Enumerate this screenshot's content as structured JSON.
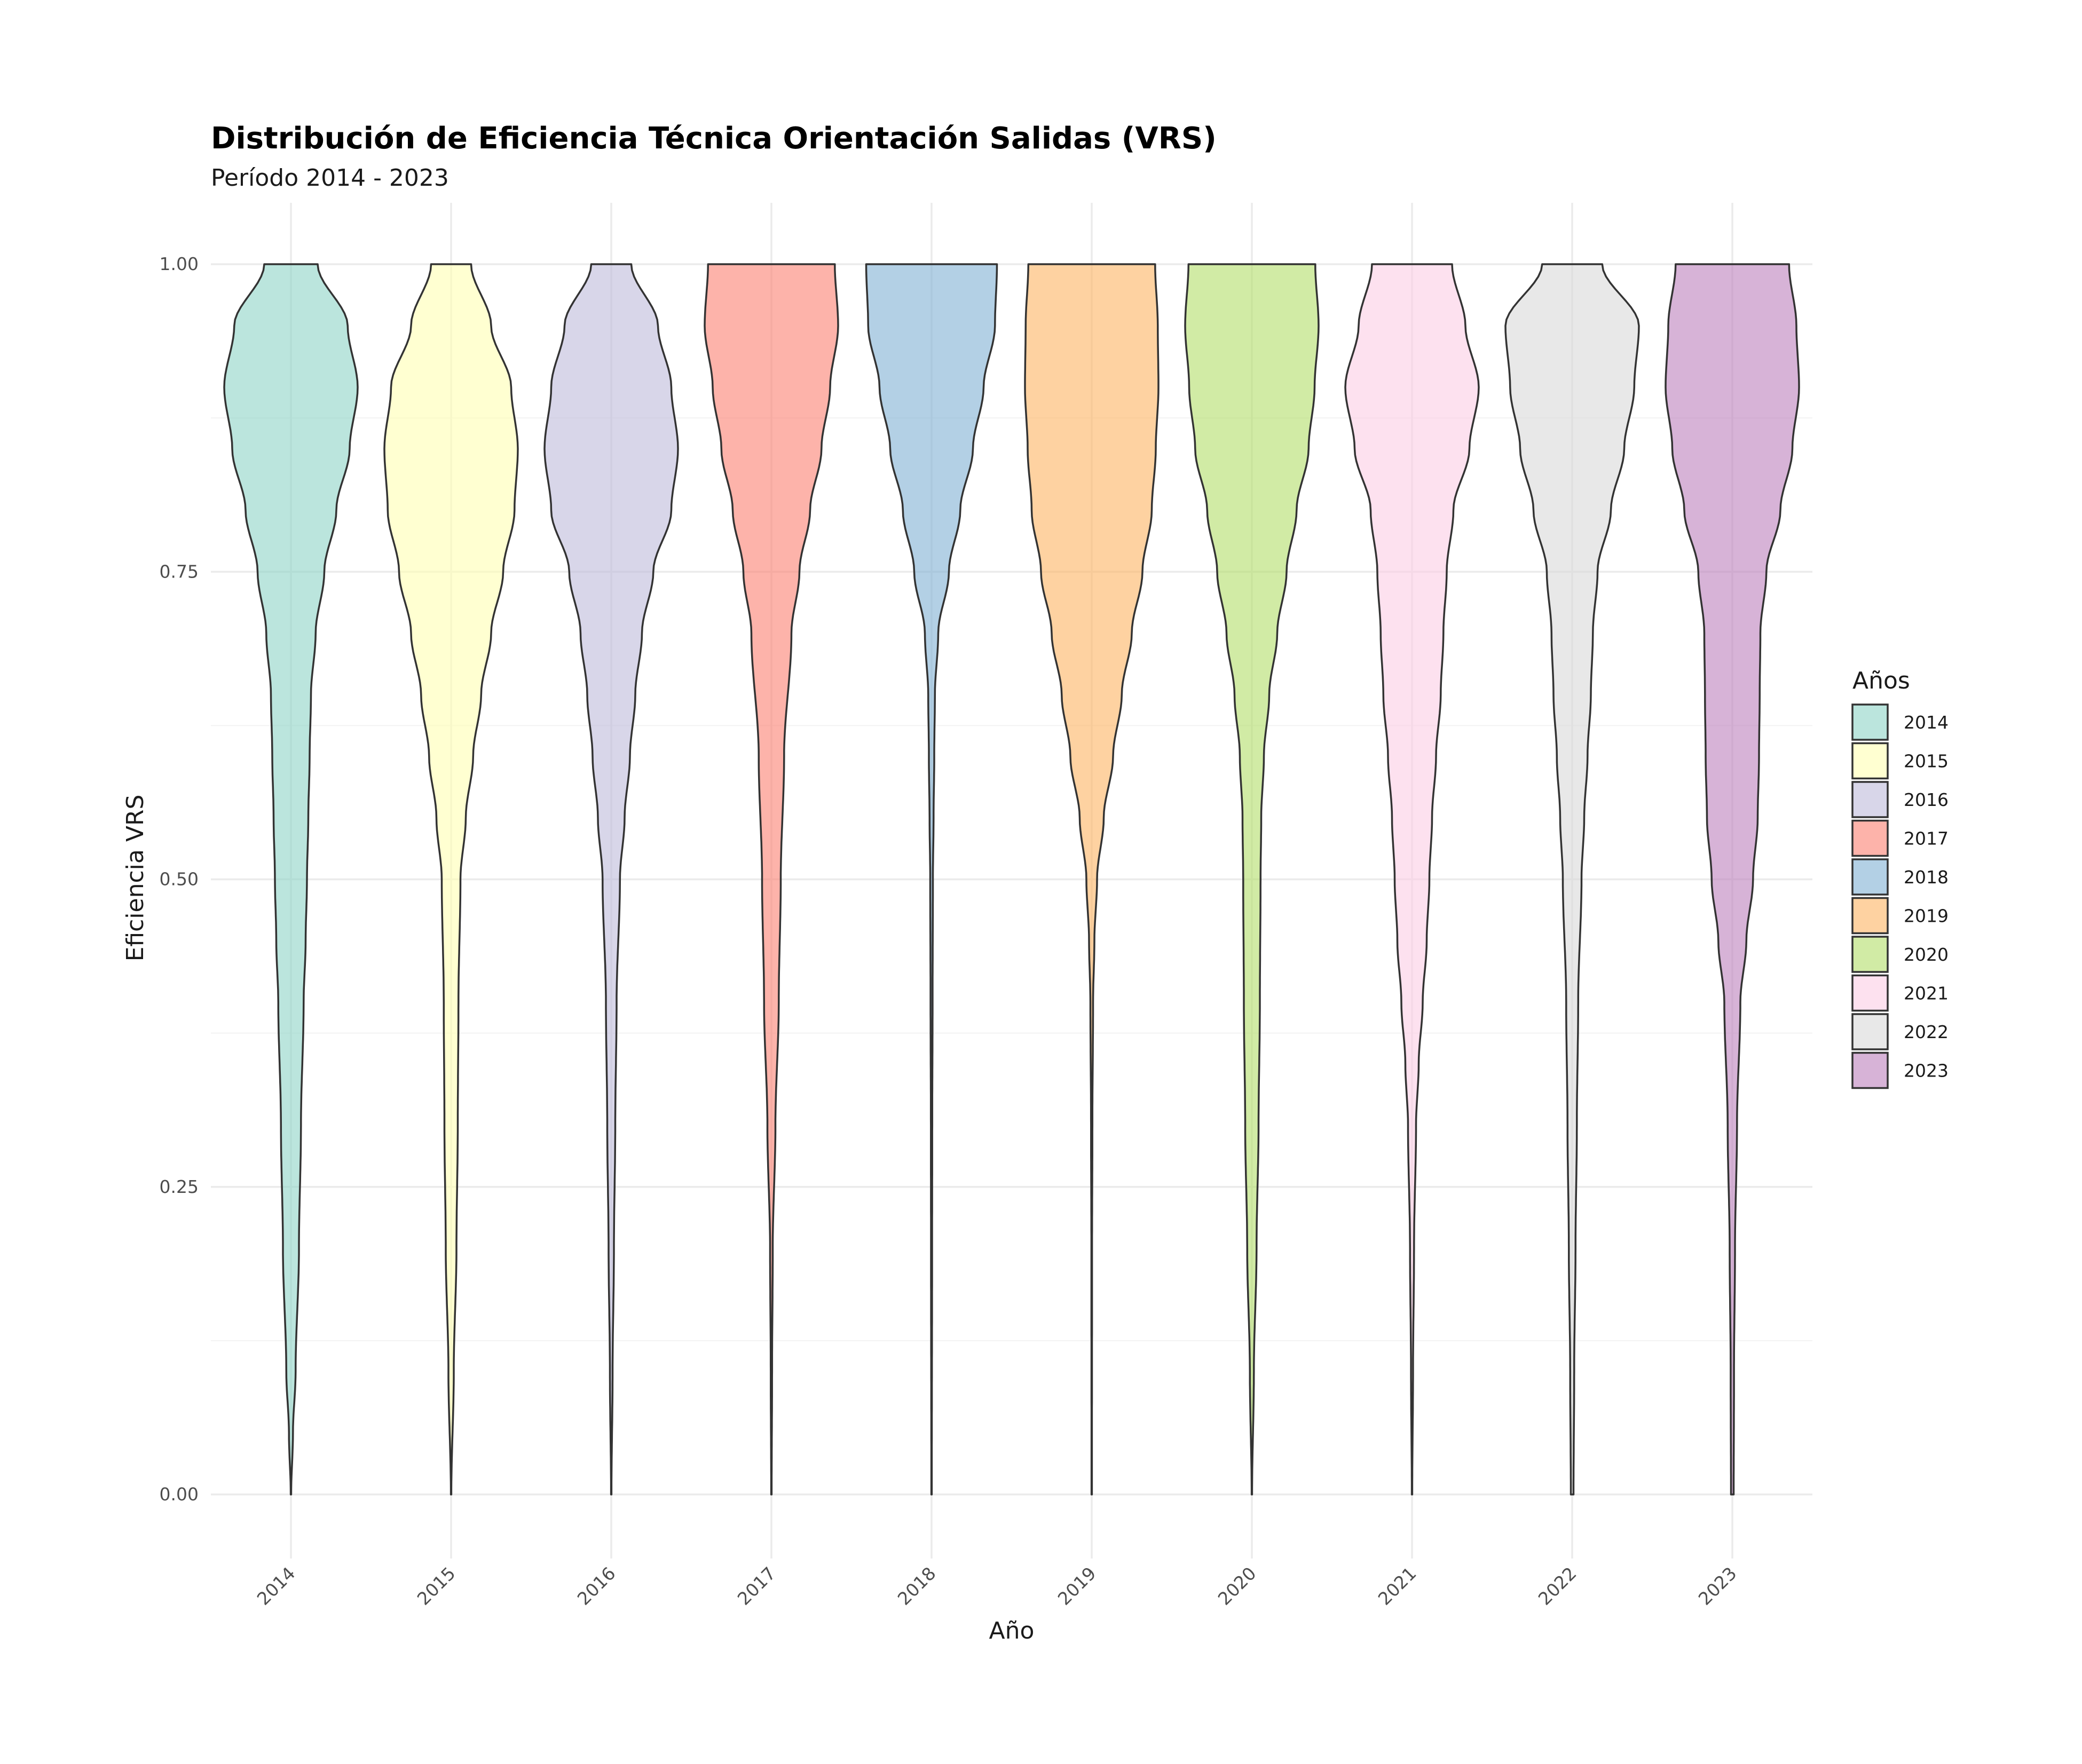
{
  "chart_data": {
    "type": "violin",
    "title": "Distribución de Eficiencia Técnica Orientación Salidas (VRS)",
    "subtitle": "Período 2014 - 2023",
    "xlabel": "Año",
    "ylabel": "Eficiencia VRS",
    "ylim": [
      -0.05,
      1.05
    ],
    "y_ticks": [
      0.0,
      0.25,
      0.5,
      0.75,
      1.0
    ],
    "y_tick_labels": [
      "0.00",
      "0.25",
      "0.50",
      "0.75",
      "1.00"
    ],
    "categories": [
      "2014",
      "2015",
      "2016",
      "2017",
      "2018",
      "2019",
      "2020",
      "2021",
      "2022",
      "2023"
    ],
    "grid": true,
    "legend": {
      "title": "Años",
      "placement": "right"
    },
    "series": [
      {
        "name": "2014",
        "color": "#8DD3C7",
        "profile": [
          [
            0,
            0.003
          ],
          [
            0.05,
            0.03
          ],
          [
            0.1,
            0.07
          ],
          [
            0.2,
            0.12
          ],
          [
            0.3,
            0.15
          ],
          [
            0.4,
            0.19
          ],
          [
            0.45,
            0.22
          ],
          [
            0.5,
            0.24
          ],
          [
            0.55,
            0.26
          ],
          [
            0.6,
            0.28
          ],
          [
            0.65,
            0.3
          ],
          [
            0.7,
            0.37
          ],
          [
            0.75,
            0.5
          ],
          [
            0.8,
            0.68
          ],
          [
            0.85,
            0.88
          ],
          [
            0.9,
            1.0
          ],
          [
            0.95,
            0.85
          ],
          [
            1.0,
            0.4
          ]
        ]
      },
      {
        "name": "2015",
        "color": "#FFFFB3",
        "profile": [
          [
            0,
            0.003
          ],
          [
            0.1,
            0.04
          ],
          [
            0.2,
            0.08
          ],
          [
            0.3,
            0.1
          ],
          [
            0.4,
            0.11
          ],
          [
            0.5,
            0.14
          ],
          [
            0.55,
            0.22
          ],
          [
            0.6,
            0.33
          ],
          [
            0.65,
            0.45
          ],
          [
            0.7,
            0.6
          ],
          [
            0.75,
            0.78
          ],
          [
            0.8,
            0.95
          ],
          [
            0.85,
            1.0
          ],
          [
            0.9,
            0.9
          ],
          [
            0.95,
            0.6
          ],
          [
            1.0,
            0.3
          ]
        ]
      },
      {
        "name": "2016",
        "color": "#BEBADA",
        "profile": [
          [
            0,
            0.003
          ],
          [
            0.1,
            0.02
          ],
          [
            0.2,
            0.04
          ],
          [
            0.3,
            0.06
          ],
          [
            0.4,
            0.08
          ],
          [
            0.5,
            0.13
          ],
          [
            0.55,
            0.2
          ],
          [
            0.6,
            0.28
          ],
          [
            0.65,
            0.36
          ],
          [
            0.7,
            0.46
          ],
          [
            0.75,
            0.63
          ],
          [
            0.8,
            0.9
          ],
          [
            0.85,
            1.0
          ],
          [
            0.9,
            0.9
          ],
          [
            0.95,
            0.7
          ],
          [
            1.0,
            0.3
          ]
        ]
      },
      {
        "name": "2017",
        "color": "#FB8072",
        "profile": [
          [
            0,
            0.003
          ],
          [
            0.1,
            0.01
          ],
          [
            0.2,
            0.02
          ],
          [
            0.3,
            0.06
          ],
          [
            0.4,
            0.11
          ],
          [
            0.5,
            0.14
          ],
          [
            0.6,
            0.19
          ],
          [
            0.7,
            0.3
          ],
          [
            0.75,
            0.42
          ],
          [
            0.8,
            0.58
          ],
          [
            0.85,
            0.75
          ],
          [
            0.9,
            0.88
          ],
          [
            0.95,
            1.0
          ],
          [
            1.0,
            0.95
          ]
        ]
      },
      {
        "name": "2018",
        "color": "#80B1D3",
        "profile": [
          [
            0,
            0.003
          ],
          [
            0.2,
            0.008
          ],
          [
            0.3,
            0.01
          ],
          [
            0.4,
            0.015
          ],
          [
            0.5,
            0.02
          ],
          [
            0.55,
            0.03
          ],
          [
            0.6,
            0.04
          ],
          [
            0.65,
            0.05
          ],
          [
            0.7,
            0.1
          ],
          [
            0.75,
            0.26
          ],
          [
            0.8,
            0.43
          ],
          [
            0.85,
            0.62
          ],
          [
            0.9,
            0.78
          ],
          [
            0.95,
            0.95
          ],
          [
            1.0,
            0.98
          ]
        ]
      },
      {
        "name": "2019",
        "color": "#FDB462",
        "profile": [
          [
            0,
            0.003
          ],
          [
            0.2,
            0.005
          ],
          [
            0.3,
            0.01
          ],
          [
            0.4,
            0.02
          ],
          [
            0.45,
            0.04
          ],
          [
            0.5,
            0.08
          ],
          [
            0.55,
            0.18
          ],
          [
            0.6,
            0.32
          ],
          [
            0.65,
            0.45
          ],
          [
            0.7,
            0.6
          ],
          [
            0.75,
            0.76
          ],
          [
            0.8,
            0.9
          ],
          [
            0.85,
            0.96
          ],
          [
            0.9,
            1.0
          ],
          [
            0.95,
            0.99
          ],
          [
            1.0,
            0.95
          ]
        ]
      },
      {
        "name": "2020",
        "color": "#B3DE69",
        "profile": [
          [
            0,
            0.003
          ],
          [
            0.1,
            0.03
          ],
          [
            0.2,
            0.07
          ],
          [
            0.3,
            0.1
          ],
          [
            0.4,
            0.12
          ],
          [
            0.5,
            0.13
          ],
          [
            0.55,
            0.14
          ],
          [
            0.6,
            0.18
          ],
          [
            0.65,
            0.26
          ],
          [
            0.7,
            0.38
          ],
          [
            0.75,
            0.52
          ],
          [
            0.8,
            0.67
          ],
          [
            0.85,
            0.85
          ],
          [
            0.9,
            0.94
          ],
          [
            0.95,
            1.0
          ],
          [
            1.0,
            0.95
          ]
        ]
      },
      {
        "name": "2021",
        "color": "#FCCDE5",
        "profile": [
          [
            0,
            0.003
          ],
          [
            0.1,
            0.015
          ],
          [
            0.2,
            0.03
          ],
          [
            0.3,
            0.06
          ],
          [
            0.35,
            0.1
          ],
          [
            0.4,
            0.16
          ],
          [
            0.45,
            0.22
          ],
          [
            0.5,
            0.26
          ],
          [
            0.55,
            0.3
          ],
          [
            0.6,
            0.36
          ],
          [
            0.65,
            0.43
          ],
          [
            0.7,
            0.47
          ],
          [
            0.75,
            0.52
          ],
          [
            0.8,
            0.62
          ],
          [
            0.85,
            0.86
          ],
          [
            0.9,
            1.0
          ],
          [
            0.95,
            0.8
          ],
          [
            1.0,
            0.6
          ]
        ]
      },
      {
        "name": "2022",
        "color": "#D9D9D9",
        "profile": [
          [
            0,
            0.02
          ],
          [
            0.1,
            0.03
          ],
          [
            0.2,
            0.05
          ],
          [
            0.3,
            0.07
          ],
          [
            0.4,
            0.09
          ],
          [
            0.5,
            0.14
          ],
          [
            0.55,
            0.18
          ],
          [
            0.6,
            0.23
          ],
          [
            0.65,
            0.28
          ],
          [
            0.7,
            0.31
          ],
          [
            0.75,
            0.38
          ],
          [
            0.8,
            0.58
          ],
          [
            0.85,
            0.78
          ],
          [
            0.9,
            0.93
          ],
          [
            0.95,
            1.0
          ],
          [
            1.0,
            0.45
          ]
        ]
      },
      {
        "name": "2023",
        "color": "#BC80BD",
        "profile": [
          [
            0,
            0.02
          ],
          [
            0.1,
            0.025
          ],
          [
            0.2,
            0.04
          ],
          [
            0.3,
            0.07
          ],
          [
            0.4,
            0.12
          ],
          [
            0.45,
            0.21
          ],
          [
            0.5,
            0.31
          ],
          [
            0.55,
            0.38
          ],
          [
            0.6,
            0.4
          ],
          [
            0.65,
            0.41
          ],
          [
            0.7,
            0.42
          ],
          [
            0.75,
            0.51
          ],
          [
            0.8,
            0.72
          ],
          [
            0.85,
            0.9
          ],
          [
            0.9,
            1.0
          ],
          [
            0.95,
            0.96
          ],
          [
            1.0,
            0.85
          ]
        ]
      }
    ]
  }
}
